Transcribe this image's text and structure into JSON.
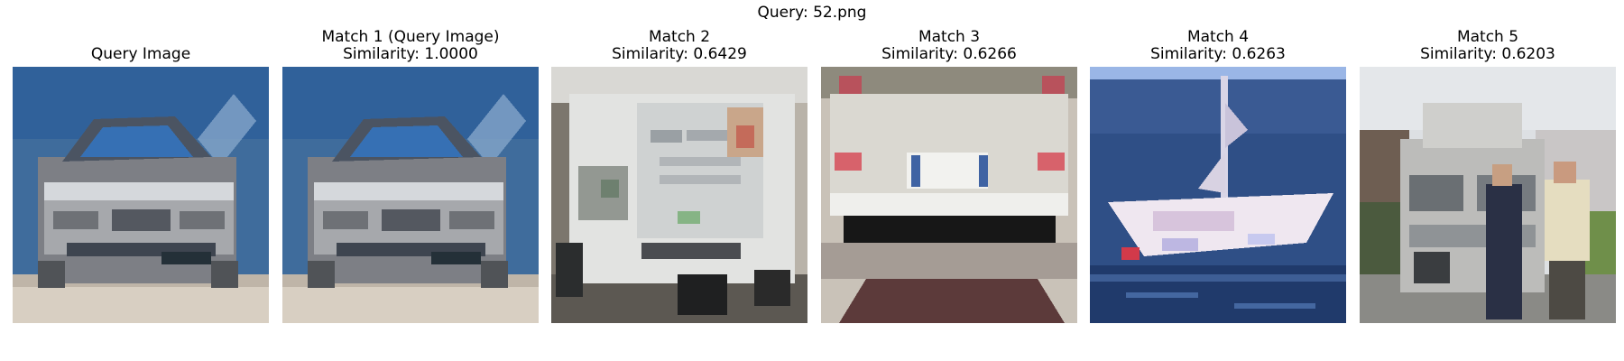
{
  "figure": {
    "title": "Query: 52.png"
  },
  "panels": [
    {
      "title": "Query Image",
      "subtitle": "",
      "image": "car-front"
    },
    {
      "title": "Match 1 (Query Image)",
      "subtitle": "Similarity: 1.0000",
      "image": "car-front"
    },
    {
      "title": "Match 2",
      "subtitle": "Similarity: 0.6429",
      "image": "white-truck"
    },
    {
      "title": "Match 3",
      "subtitle": "Similarity: 0.6266",
      "image": "car-rear"
    },
    {
      "title": "Match 4",
      "subtitle": "Similarity: 0.6263",
      "image": "boat"
    },
    {
      "title": "Match 5",
      "subtitle": "Similarity: 0.6203",
      "image": "truck-with-people"
    }
  ]
}
